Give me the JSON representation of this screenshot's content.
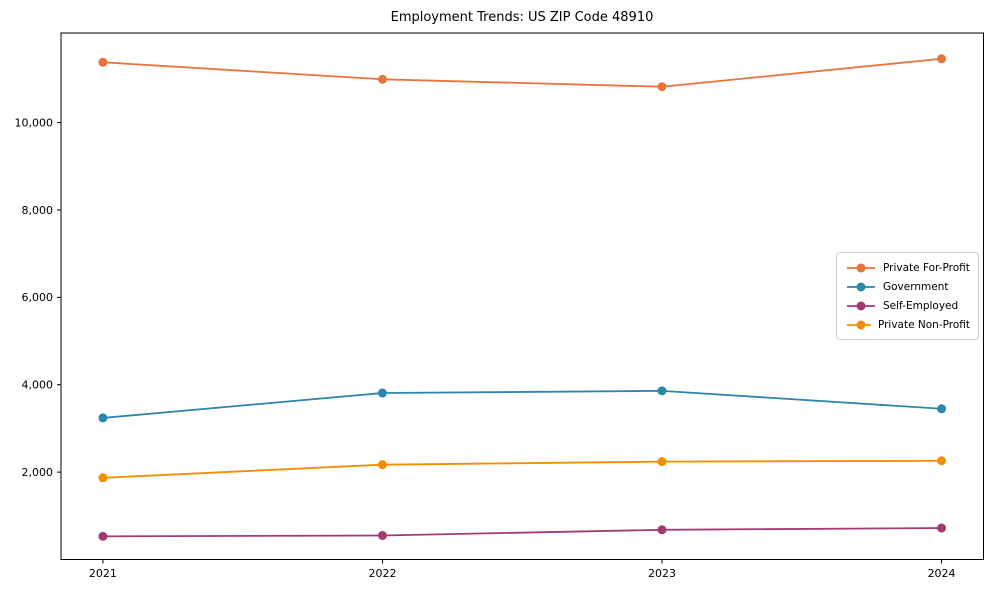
{
  "figure": {
    "title": "Employment Trends: US ZIP Code 48910"
  },
  "chart_data": {
    "type": "line",
    "title": "Employment Trends: US ZIP Code 48910",
    "categories": [
      "2021",
      "2022",
      "2023",
      "2024"
    ],
    "series": [
      {
        "name": "Private For-Profit",
        "color": "#E8743B",
        "values": [
          11380,
          10990,
          10820,
          11460
        ]
      },
      {
        "name": "Government",
        "color": "#2E86AB",
        "values": [
          3240,
          3810,
          3860,
          3450
        ]
      },
      {
        "name": "Self-Employed",
        "color": "#A23B72",
        "values": [
          530,
          550,
          680,
          720
        ]
      },
      {
        "name": "Private Non-Profit",
        "color": "#F18F01",
        "values": [
          1870,
          2170,
          2240,
          2260
        ]
      }
    ],
    "xlabel": "",
    "ylabel": "",
    "ylim": [
      0,
      12050
    ],
    "y_ticks": [
      2000,
      4000,
      6000,
      8000,
      10000
    ],
    "y_tick_labels": [
      "2,000",
      "4,000",
      "6,000",
      "8,000",
      "10,000"
    ],
    "grid": false,
    "legend_position": "right-middle",
    "axis_color": "#000000",
    "legend_border_color": "#cccccc"
  }
}
